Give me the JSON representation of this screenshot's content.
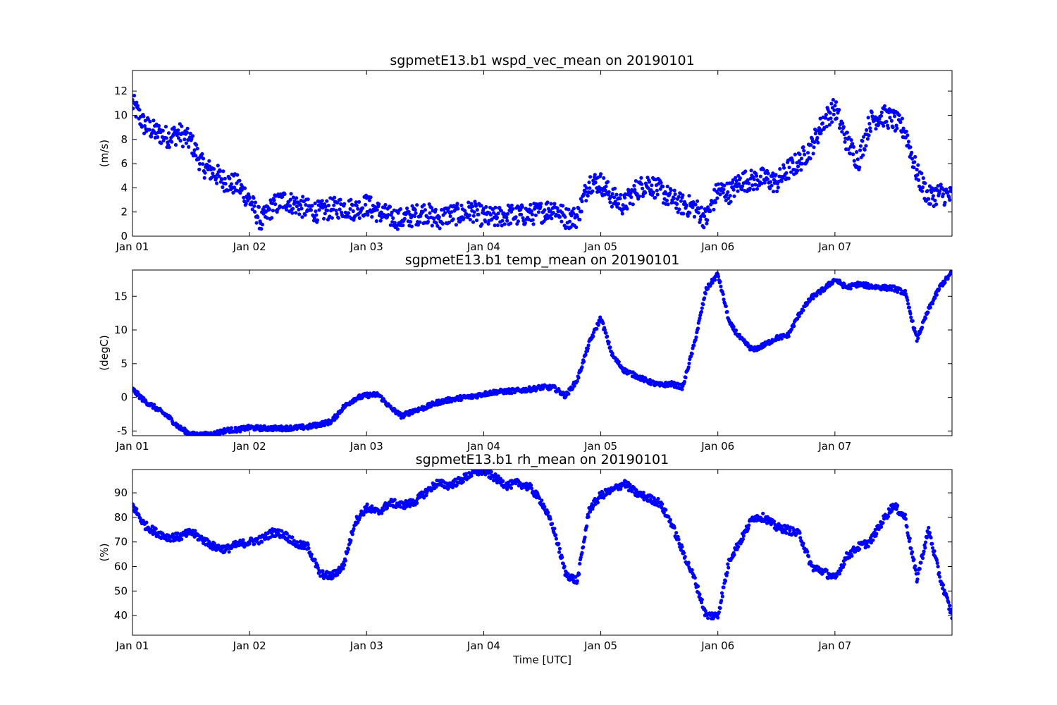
{
  "chart_data": [
    {
      "type": "scatter",
      "title": "sgpmetE13.b1 wspd_vec_mean on 20190101",
      "xlabel": "",
      "ylabel": "(m/s)",
      "xlim": [
        "2019-01-01T00:00",
        "2019-01-08T00:00"
      ],
      "ylim": [
        0,
        13.7
      ],
      "x_ticks": [
        "Jan 01",
        "Jan 02",
        "Jan 03",
        "Jan 04",
        "Jan 05",
        "Jan 06",
        "Jan 07"
      ],
      "y_ticks": [
        0,
        2,
        4,
        6,
        8,
        10,
        12
      ],
      "grid": false,
      "marker_color": "#0000ff",
      "series": [
        {
          "values_x_days": [
            0.0,
            0.1,
            0.2,
            0.3,
            0.4,
            0.5,
            0.6,
            0.7,
            0.8,
            0.9,
            1.0,
            1.1,
            1.2,
            1.3,
            1.4,
            1.5,
            1.6,
            1.7,
            1.8,
            1.9,
            2.0,
            2.1,
            2.2,
            2.3,
            2.4,
            2.5,
            2.6,
            2.7,
            2.8,
            2.9,
            3.0,
            3.1,
            3.2,
            3.3,
            3.4,
            3.5,
            3.6,
            3.7,
            3.8,
            3.9,
            4.0,
            4.1,
            4.2,
            4.3,
            4.4,
            4.5,
            4.6,
            4.7,
            4.8,
            4.9,
            5.0,
            5.1,
            5.2,
            5.3,
            5.4,
            5.5,
            5.6,
            5.7,
            5.8,
            5.9,
            6.0,
            6.1,
            6.2,
            6.3,
            6.4,
            6.5,
            6.6,
            6.7,
            6.8,
            6.9,
            7.0
          ],
          "values": [
            11.0,
            9.2,
            8.6,
            8.2,
            8.5,
            7.8,
            5.8,
            5.2,
            4.5,
            4.2,
            3.0,
            1.2,
            2.5,
            3.0,
            2.6,
            2.2,
            2.0,
            2.3,
            2.4,
            2.2,
            2.6,
            2.0,
            1.6,
            1.4,
            1.7,
            2.0,
            1.4,
            1.8,
            1.8,
            2.1,
            1.6,
            1.5,
            1.8,
            1.7,
            1.8,
            2.0,
            2.4,
            1.5,
            1.6,
            4.5,
            4.4,
            3.2,
            2.6,
            3.8,
            4.4,
            3.8,
            3.1,
            2.6,
            2.4,
            1.4,
            3.8,
            3.6,
            4.6,
            4.6,
            4.8,
            4.4,
            5.5,
            6.2,
            7.4,
            9.5,
            10.6,
            7.9,
            6.2,
            9.5,
            10.0,
            9.6,
            8.7,
            5.2,
            3.2,
            3.6,
            3.2
          ],
          "spread": 0.9
        }
      ]
    },
    {
      "type": "scatter",
      "title": "sgpmetE13.b1 temp_mean on 20190101",
      "xlabel": "",
      "ylabel": "(degC)",
      "xlim": [
        "2019-01-01T00:00",
        "2019-01-08T00:00"
      ],
      "ylim": [
        -5.7,
        18.9
      ],
      "x_ticks": [
        "Jan 01",
        "Jan 02",
        "Jan 03",
        "Jan 04",
        "Jan 05",
        "Jan 06",
        "Jan 07"
      ],
      "y_ticks": [
        -5,
        0,
        5,
        10,
        15
      ],
      "grid": false,
      "marker_color": "#0000ff",
      "series": [
        {
          "values_x_days": [
            0.0,
            0.1,
            0.2,
            0.3,
            0.4,
            0.5,
            0.6,
            0.7,
            0.8,
            0.9,
            1.0,
            1.1,
            1.2,
            1.3,
            1.4,
            1.5,
            1.6,
            1.7,
            1.8,
            1.9,
            2.0,
            2.1,
            2.2,
            2.3,
            2.4,
            2.5,
            2.6,
            2.7,
            2.8,
            2.9,
            3.0,
            3.1,
            3.2,
            3.3,
            3.4,
            3.5,
            3.6,
            3.7,
            3.8,
            3.9,
            4.0,
            4.1,
            4.2,
            4.3,
            4.4,
            4.5,
            4.6,
            4.7,
            4.8,
            4.9,
            5.0,
            5.1,
            5.2,
            5.3,
            5.4,
            5.5,
            5.6,
            5.7,
            5.8,
            5.9,
            6.0,
            6.1,
            6.2,
            6.3,
            6.4,
            6.5,
            6.6,
            6.7,
            6.8,
            6.9,
            7.0
          ],
          "values": [
            1.2,
            -0.5,
            -1.6,
            -2.8,
            -4.5,
            -5.5,
            -5.6,
            -5.4,
            -4.9,
            -4.8,
            -4.5,
            -4.6,
            -4.6,
            -4.6,
            -4.5,
            -4.4,
            -4.0,
            -3.6,
            -1.5,
            -0.2,
            0.3,
            0.4,
            -1.5,
            -2.8,
            -2.0,
            -1.5,
            -0.8,
            -0.4,
            -0.1,
            0.1,
            0.5,
            0.8,
            0.9,
            1.0,
            1.2,
            1.5,
            1.4,
            0.2,
            2.6,
            8.0,
            11.8,
            6.2,
            4.0,
            3.2,
            2.4,
            1.8,
            2.0,
            1.5,
            8.0,
            16.0,
            18.3,
            11.0,
            8.6,
            7.0,
            7.8,
            8.8,
            9.2,
            12.5,
            14.8,
            16.0,
            17.5,
            16.3,
            16.8,
            16.5,
            16.3,
            16.2,
            15.5,
            8.6,
            13.0,
            16.5,
            18.5
          ],
          "spread": 0.35
        }
      ]
    },
    {
      "type": "scatter",
      "title": "sgpmetE13.b1 rh_mean on 20190101",
      "xlabel": "Time [UTC]",
      "ylabel": "(%)",
      "xlim": [
        "2019-01-01T00:00",
        "2019-01-08T00:00"
      ],
      "ylim": [
        32,
        99.5
      ],
      "x_ticks": [
        "Jan 01",
        "Jan 02",
        "Jan 03",
        "Jan 04",
        "Jan 05",
        "Jan 06",
        "Jan 07"
      ],
      "y_ticks": [
        40,
        50,
        60,
        70,
        80,
        90
      ],
      "grid": false,
      "marker_color": "#0000ff",
      "series": [
        {
          "values_x_days": [
            0.0,
            0.1,
            0.2,
            0.3,
            0.4,
            0.5,
            0.6,
            0.7,
            0.8,
            0.9,
            1.0,
            1.1,
            1.2,
            1.3,
            1.4,
            1.5,
            1.6,
            1.7,
            1.8,
            1.9,
            2.0,
            2.1,
            2.2,
            2.3,
            2.4,
            2.5,
            2.6,
            2.7,
            2.8,
            2.9,
            3.0,
            3.1,
            3.2,
            3.3,
            3.4,
            3.5,
            3.6,
            3.7,
            3.8,
            3.9,
            4.0,
            4.1,
            4.2,
            4.3,
            4.4,
            4.5,
            4.6,
            4.7,
            4.8,
            4.9,
            5.0,
            5.1,
            5.2,
            5.3,
            5.4,
            5.5,
            5.6,
            5.7,
            5.8,
            5.9,
            6.0,
            6.1,
            6.2,
            6.3,
            6.4,
            6.5,
            6.6,
            6.7,
            6.8,
            6.9,
            7.0
          ],
          "values": [
            85,
            77,
            74,
            72,
            72,
            74,
            71,
            68,
            67,
            69,
            70,
            71,
            74,
            73,
            69,
            68,
            57,
            56,
            60,
            78,
            84,
            82,
            86,
            85,
            86,
            90,
            94,
            93,
            95,
            98,
            99,
            96,
            93,
            94,
            92,
            86,
            75,
            57,
            54,
            83,
            89,
            91,
            94,
            90,
            88,
            86,
            78,
            66,
            55,
            40,
            40,
            63,
            71,
            80,
            80,
            76,
            75,
            73,
            60,
            58,
            55,
            64,
            68,
            70,
            78,
            85,
            80,
            55,
            75,
            55,
            40
          ],
          "spread": 1.6
        }
      ]
    }
  ]
}
